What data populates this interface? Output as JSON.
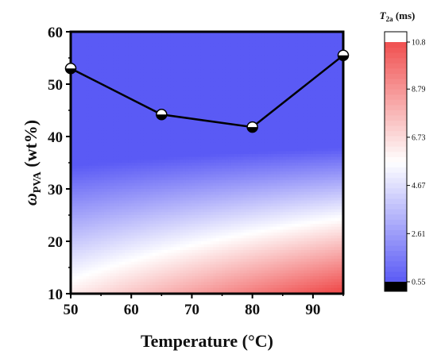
{
  "chart_data": {
    "type": "heatmap",
    "xlabel": "Temperature (°C)",
    "ylabel_symbol": "ω",
    "ylabel_subscript": "PVA",
    "ylabel_unit": " (wt%)",
    "xlim": [
      50,
      95
    ],
    "ylim": [
      10,
      60
    ],
    "x_ticks": [
      "50",
      "60",
      "70",
      "80",
      "90"
    ],
    "x_tick_values": [
      50,
      60,
      70,
      80,
      90
    ],
    "y_ticks": [
      "10",
      "20",
      "30",
      "40",
      "50",
      "60"
    ],
    "y_tick_values": [
      10,
      20,
      30,
      40,
      50,
      60
    ],
    "series": [
      {
        "values": [
          {
            "x": 50,
            "y": 53.0
          },
          {
            "x": 65,
            "y": 44.2
          },
          {
            "x": 80,
            "y": 41.8
          },
          {
            "x": 95,
            "y": 55.5
          }
        ]
      }
    ],
    "colorbar": {
      "title_symbol": "T",
      "title_subscript": "2a",
      "title_unit": " (ms)",
      "tick_labels": [
        "0.55",
        "2.61",
        "4.67",
        "6.73",
        "8.79",
        "10.8"
      ],
      "tick_values": [
        0.55,
        2.61,
        4.67,
        6.73,
        8.79,
        10.8
      ],
      "range": [
        0.55,
        10.8
      ],
      "colors": {
        "low": "#5a5af5",
        "mid": "#ffffff",
        "high": "#f05050",
        "under": "#000000",
        "over": "#ffffff"
      }
    }
  }
}
